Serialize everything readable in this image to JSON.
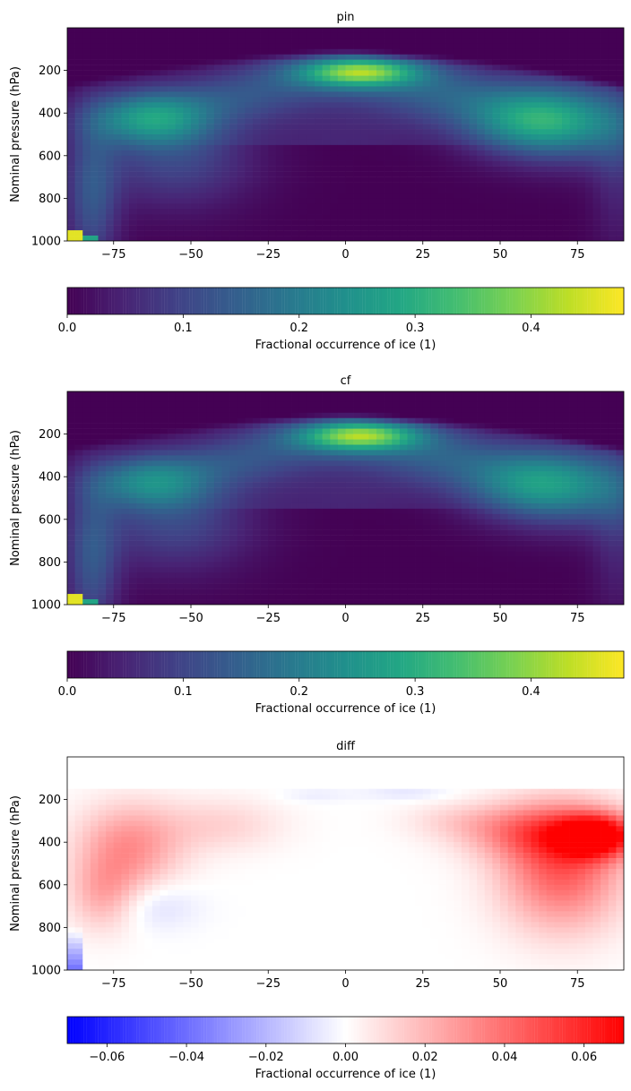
{
  "chart_data": [
    {
      "type": "heatmap",
      "title": "pin",
      "ylabel": "Nominal pressure (hPa)",
      "xlim": [
        -90,
        90
      ],
      "ylim": [
        1000,
        0
      ],
      "xticks": [
        -75,
        -50,
        -25,
        0,
        25,
        50,
        75
      ],
      "yticks": [
        200,
        400,
        600,
        800,
        1000
      ],
      "colormap": "viridis",
      "colorbar": {
        "label": "Fractional occurrence of ice (1)",
        "range": [
          0.0,
          0.48
        ],
        "ticks": [
          "0.0",
          "0.1",
          "0.2",
          "0.3",
          "0.4"
        ],
        "tick_values": [
          0.0,
          0.1,
          0.2,
          0.3,
          0.4
        ],
        "orientation": "horizontal"
      },
      "features": [
        {
          "lat": 5,
          "pres": 200,
          "value": 0.26,
          "desc": "tropical upper-troposphere max"
        },
        {
          "lat": -65,
          "pres": 420,
          "value": 0.24,
          "desc": "southern mid-latitude max"
        },
        {
          "lat": 60,
          "pres": 420,
          "value": 0.24,
          "desc": "northern mid-latitude max"
        },
        {
          "lat": -88,
          "pres": 990,
          "value": 0.47,
          "desc": "antarctic surface max"
        }
      ]
    },
    {
      "type": "heatmap",
      "title": "cf",
      "ylabel": "Nominal pressure (hPa)",
      "xlim": [
        -90,
        90
      ],
      "ylim": [
        1000,
        0
      ],
      "xticks": [
        -75,
        -50,
        -25,
        0,
        25,
        50,
        75
      ],
      "yticks": [
        200,
        400,
        600,
        800,
        1000
      ],
      "colormap": "viridis",
      "colorbar": {
        "label": "Fractional occurrence of ice (1)",
        "range": [
          0.0,
          0.48
        ],
        "ticks": [
          "0.0",
          "0.1",
          "0.2",
          "0.3",
          "0.4"
        ],
        "tick_values": [
          0.0,
          0.1,
          0.2,
          0.3,
          0.4
        ],
        "orientation": "horizontal"
      },
      "features": [
        {
          "lat": 5,
          "pres": 200,
          "value": 0.26
        },
        {
          "lat": -65,
          "pres": 420,
          "value": 0.21
        },
        {
          "lat": 60,
          "pres": 420,
          "value": 0.2
        },
        {
          "lat": -88,
          "pres": 990,
          "value": 0.47
        }
      ]
    },
    {
      "type": "heatmap",
      "title": "diff",
      "ylabel": "Nominal pressure (hPa)",
      "xlim": [
        -90,
        90
      ],
      "ylim": [
        1000,
        0
      ],
      "xticks": [
        -75,
        -50,
        -25,
        0,
        25,
        50,
        75
      ],
      "yticks": [
        200,
        400,
        600,
        800,
        1000
      ],
      "colormap": "bwr",
      "colorbar": {
        "label": "Fractional occurrence of ice (1)",
        "range": [
          -0.07,
          0.07
        ],
        "ticks": [
          "−0.06",
          "−0.04",
          "−0.02",
          "0.00",
          "0.02",
          "0.04",
          "0.06"
        ],
        "tick_values": [
          -0.06,
          -0.04,
          -0.02,
          0.0,
          0.02,
          0.04,
          0.06
        ],
        "orientation": "horizontal"
      },
      "features": [
        {
          "lat": 82,
          "pres": 370,
          "value": 0.066
        },
        {
          "lat": -70,
          "pres": 400,
          "value": 0.03
        },
        {
          "lat": -65,
          "pres": 700,
          "value": -0.008
        },
        {
          "lat": -88,
          "pres": 950,
          "value": -0.06
        }
      ]
    }
  ]
}
